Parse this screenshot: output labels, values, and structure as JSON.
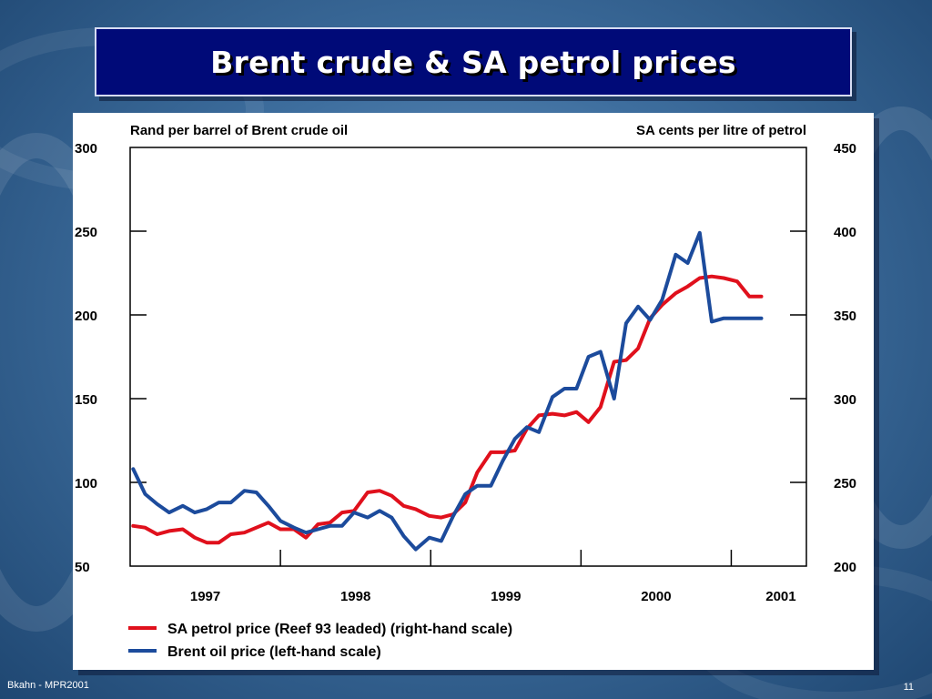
{
  "slide": {
    "title": "Brent crude & SA petrol prices",
    "footer_left": "Bkahn - MPR2001",
    "page_number": "11"
  },
  "chart_data": {
    "type": "line",
    "left_axis": {
      "label": "Rand per barrel of Brent crude oil",
      "min": 50,
      "max": 300,
      "ticks": [
        50,
        100,
        150,
        200,
        250,
        300
      ]
    },
    "right_axis": {
      "label": "SA cents per litre of petrol",
      "min": 200,
      "max": 450,
      "ticks": [
        200,
        250,
        300,
        350,
        400,
        450
      ]
    },
    "x_axis": {
      "min": 1996.5,
      "max": 2001.0,
      "dividers": [
        1997.5,
        1998.5,
        1999.5,
        2000.5
      ],
      "year_labels": [
        {
          "label": "1997",
          "center": 1997.0
        },
        {
          "label": "1998",
          "center": 1998.0
        },
        {
          "label": "1999",
          "center": 1999.0
        },
        {
          "label": "2000",
          "center": 2000.0
        },
        {
          "label": "2001",
          "center": 2000.83
        }
      ]
    },
    "series": [
      {
        "name": "SA petrol price (Reef 93 leaded) (right-hand scale)",
        "axis": "right",
        "color": "#e0101c",
        "x": [
          1996.52,
          1996.6,
          1996.68,
          1996.76,
          1996.85,
          1996.93,
          1997.01,
          1997.09,
          1997.17,
          1997.26,
          1997.34,
          1997.42,
          1997.5,
          1997.59,
          1997.67,
          1997.75,
          1997.83,
          1997.91,
          1997.99,
          1998.08,
          1998.16,
          1998.24,
          1998.32,
          1998.4,
          1998.49,
          1998.57,
          1998.65,
          1998.73,
          1998.81,
          1998.9,
          1998.98,
          1999.06,
          1999.14,
          1999.22,
          1999.31,
          1999.39,
          1999.47,
          1999.55,
          1999.63,
          1999.72,
          1999.8,
          1999.88,
          1999.96,
          2000.04,
          2000.13,
          2000.21,
          2000.29,
          2000.37,
          2000.45,
          2000.54,
          2000.62,
          2000.7
        ],
        "values": [
          224,
          223,
          219,
          221,
          222,
          217,
          214,
          214,
          219,
          220,
          223,
          226,
          222,
          222,
          217,
          225,
          226,
          232,
          233,
          244,
          245,
          242,
          236,
          234,
          230,
          229,
          231,
          238,
          256,
          268,
          268,
          269,
          282,
          290,
          291,
          290,
          292,
          286,
          295,
          322,
          323,
          330,
          348,
          356,
          363,
          367,
          372,
          373,
          372,
          370,
          361,
          361
        ]
      },
      {
        "name": "Brent oil price (left-hand scale)",
        "axis": "left",
        "color": "#1c4b9c",
        "x": [
          1996.52,
          1996.6,
          1996.68,
          1996.76,
          1996.85,
          1996.93,
          1997.01,
          1997.09,
          1997.17,
          1997.26,
          1997.34,
          1997.42,
          1997.5,
          1997.59,
          1997.67,
          1997.75,
          1997.83,
          1997.91,
          1997.99,
          1998.08,
          1998.16,
          1998.24,
          1998.32,
          1998.4,
          1998.49,
          1998.57,
          1998.65,
          1998.73,
          1998.81,
          1998.9,
          1998.98,
          1999.06,
          1999.14,
          1999.22,
          1999.31,
          1999.39,
          1999.47,
          1999.55,
          1999.63,
          1999.72,
          1999.8,
          1999.88,
          1999.96,
          2000.04,
          2000.13,
          2000.21,
          2000.29,
          2000.37,
          2000.45,
          2000.54,
          2000.62,
          2000.7
        ],
        "values": [
          108,
          93,
          87,
          82,
          86,
          82,
          84,
          88,
          88,
          95,
          94,
          86,
          77,
          73,
          70,
          72,
          74,
          74,
          82,
          79,
          83,
          79,
          68,
          60,
          67,
          65,
          80,
          93,
          98,
          98,
          113,
          126,
          133,
          130,
          151,
          156,
          156,
          175,
          178,
          150,
          195,
          205,
          197,
          209,
          236,
          231,
          249,
          196,
          198,
          198,
          198,
          198
        ]
      }
    ],
    "legend_position": "bottom",
    "grid": false
  }
}
